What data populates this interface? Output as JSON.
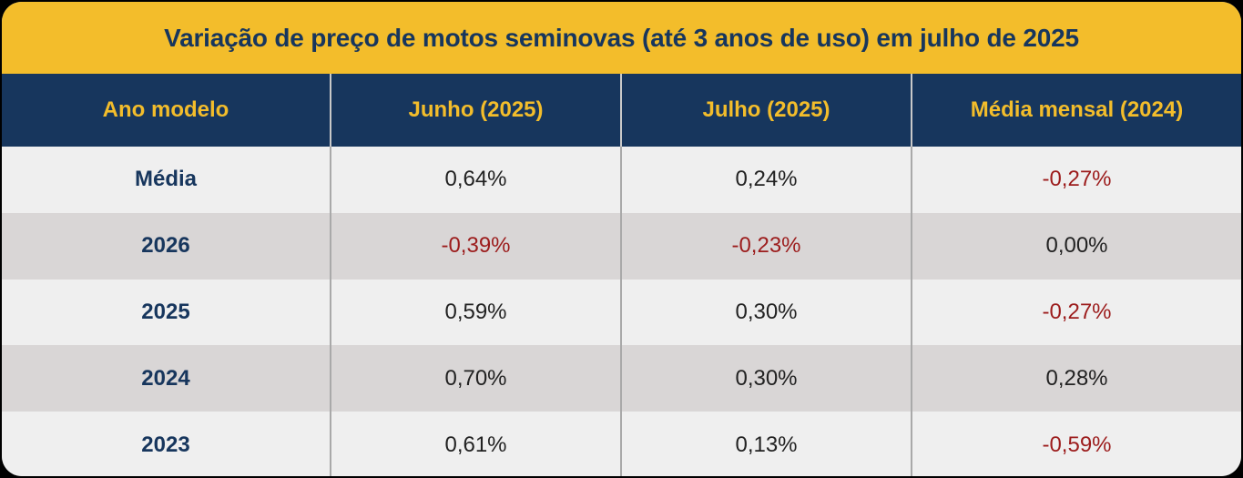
{
  "title": "Variação de preço de motos seminovas (até 3 anos de uso) em julho de 2025",
  "colors": {
    "title_bg": "#f3bd2b",
    "header_bg": "#17365d",
    "header_text": "#f3bd2b",
    "negative_text": "#9c1c1c",
    "row_light": "#efefef",
    "row_dark": "#d9d6d6"
  },
  "chart_data": {
    "type": "table",
    "title": "Variação de preço de motos seminovas (até 3 anos de uso) em julho de 2025",
    "columns": [
      "Ano modelo",
      "Junho (2025)",
      "Julho (2025)",
      "Média mensal (2024)"
    ],
    "rows": [
      {
        "label": "Média",
        "values": [
          "0,64%",
          "0,24%",
          "-0,27%"
        ]
      },
      {
        "label": "2026",
        "values": [
          "-0,39%",
          "-0,23%",
          "0,00%"
        ]
      },
      {
        "label": "2025",
        "values": [
          "0,59%",
          "0,30%",
          "-0,27%"
        ]
      },
      {
        "label": "2024",
        "values": [
          "0,70%",
          "0,30%",
          "0,28%"
        ]
      },
      {
        "label": "2023",
        "values": [
          "0,61%",
          "0,13%",
          "-0,59%"
        ]
      }
    ]
  }
}
